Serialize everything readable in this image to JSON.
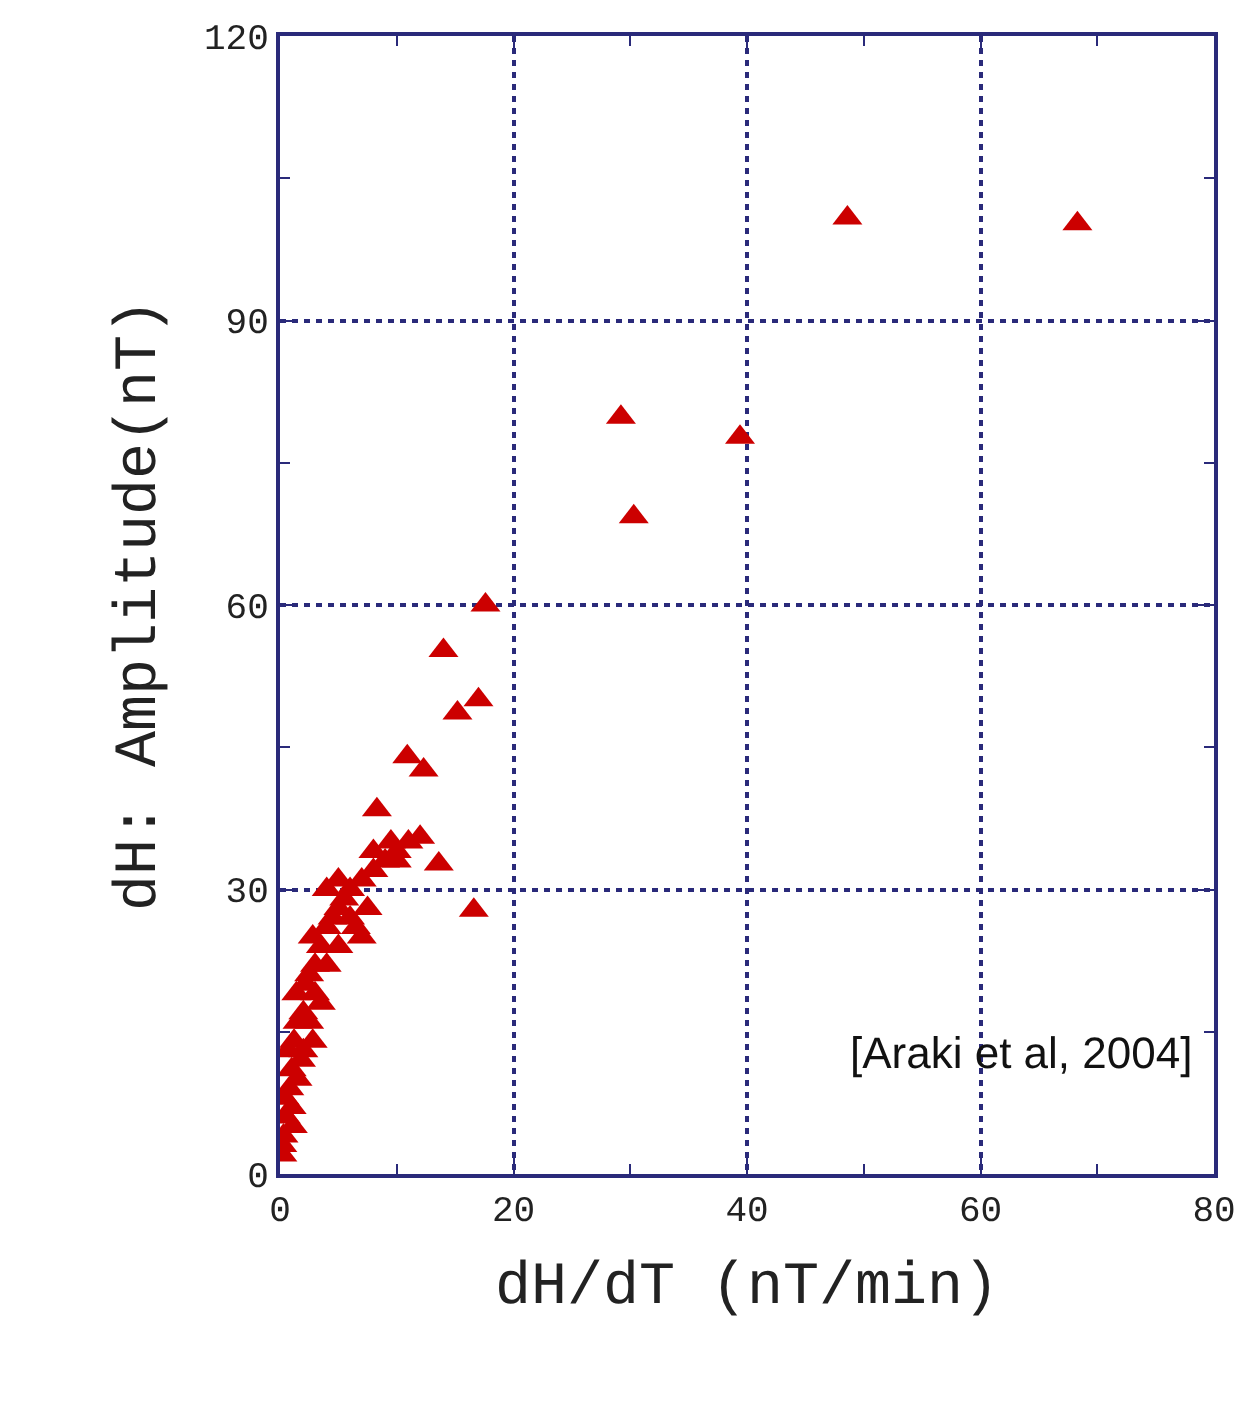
{
  "chart_data": {
    "type": "scatter",
    "xlabel": "dH/dT (nT/min)",
    "ylabel": "dH: Amplitude(nT)",
    "annotations": [
      "[Araki et al, 2004]"
    ],
    "x": [
      48.6,
      68.3,
      29.2,
      39.4,
      30.3,
      17.6,
      14.0,
      17.0,
      15.2,
      10.9,
      12.3,
      8.3,
      13.6,
      16.6,
      0.2,
      0.3,
      0.5,
      0.4,
      0.8,
      1,
      0.7,
      1.2,
      1.5,
      2,
      1.4,
      2.2,
      2.5,
      3,
      3.5,
      2.8,
      4,
      4.5,
      5,
      5.5,
      6,
      4,
      5,
      7,
      8,
      9,
      10,
      11,
      12,
      7.5,
      6.5,
      5,
      4,
      3,
      2.5,
      2,
      1.5,
      1,
      1.1,
      0.2,
      9.5,
      8,
      6,
      7,
      10,
      3.5,
      1.8,
      2.8
    ],
    "series": [
      {
        "color": "#cc0000",
        "values": [
          100.8,
          100.2,
          79.8,
          77.7,
          69.3,
          60,
          55.2,
          50,
          48.6,
          44,
          42.6,
          38.4,
          32.7,
          27.8,
          2,
          4,
          6,
          8,
          9,
          11,
          13,
          14,
          16,
          17,
          19,
          20,
          21,
          22,
          24,
          25,
          26,
          27,
          28,
          29,
          30,
          30,
          31,
          31,
          32,
          33,
          34,
          35,
          35.5,
          28,
          26,
          24,
          22,
          19,
          16,
          13,
          10,
          7,
          5,
          3,
          35,
          34,
          27,
          25,
          33,
          18,
          12,
          14
        ]
      }
    ],
    "xlim": [
      0,
      80
    ],
    "ylim": [
      0,
      120
    ],
    "xticks": [
      0,
      20,
      40,
      60,
      80
    ],
    "yticks": [
      0,
      30,
      60,
      90,
      120
    ],
    "grid": true,
    "marker": "triangle"
  }
}
